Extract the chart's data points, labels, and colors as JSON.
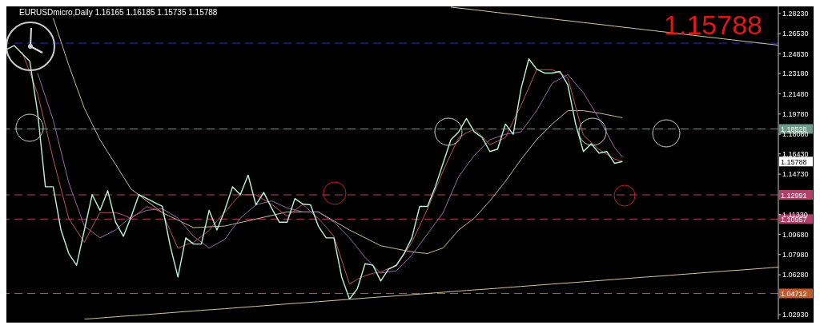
{
  "chart_data": {
    "type": "line",
    "title": "EURUSDmicro,Daily  1.16165 1.16185 1.15735 1.15788",
    "categories": [
      null,
      null,
      null,
      null,
      null,
      null,
      null,
      null,
      null,
      null,
      null,
      null,
      null,
      null,
      null,
      null,
      null,
      null,
      null,
      null,
      null,
      null,
      null,
      null,
      null,
      null,
      null,
      null,
      null,
      null,
      null,
      null,
      null,
      null,
      null,
      null,
      null,
      null,
      null,
      null,
      null,
      null,
      null,
      null,
      null,
      null,
      null,
      null,
      null,
      null,
      null,
      null,
      null,
      null,
      null,
      null,
      null,
      null,
      null,
      null,
      null,
      null,
      null,
      null,
      null,
      null,
      null,
      null,
      null,
      null,
      null,
      null,
      null,
      null,
      null,
      null,
      null,
      null,
      null,
      null,
      null,
      null,
      null,
      null,
      null,
      null,
      null,
      null,
      null,
      null,
      null,
      null,
      null,
      null,
      null,
      null,
      null,
      null,
      null,
      null
    ],
    "series": [
      {
        "color": "#cbbf98",
        "values": [
          null,
          null,
          null,
          null,
          null,
          null,
          1.2783,
          1.2586,
          1.2388,
          1.2207,
          1.2026,
          1.1894,
          1.1762,
          1.1658,
          1.1555,
          1.1451,
          1.1347,
          1.1298,
          1.1248,
          1.1199,
          1.1149,
          1.1118,
          1.1087,
          1.1055,
          1.1024,
          1.1027,
          1.1031,
          1.1034,
          1.1037,
          1.1052,
          1.1067,
          1.1081,
          1.1096,
          1.1111,
          1.1126,
          1.1141,
          1.1156,
          1.1156,
          1.1156,
          1.1156,
          1.1156,
          1.1118,
          1.108,
          1.1042,
          1.1004,
          1.0971,
          1.0938,
          1.0905,
          1.0872,
          1.0859,
          1.0846,
          1.0833,
          1.082,
          1.0813,
          1.0806,
          1.083,
          1.0853,
          1.0929,
          1.1004,
          1.1054,
          1.1103,
          1.1176,
          1.1248,
          1.1331,
          1.1413,
          1.1505,
          1.1597,
          1.168,
          1.1762,
          1.1828,
          1.1894,
          1.195,
          1.2006,
          1.2006,
          1.2006,
          1.1996,
          1.1986,
          1.1973,
          1.196,
          1.1947,
          null,
          null,
          null,
          null,
          null,
          null,
          null,
          null,
          null,
          null,
          null,
          null,
          null,
          null,
          null,
          null,
          null,
          null,
          null,
          null
        ]
      },
      {
        "color": "#9a6aa8",
        "values": [
          null,
          null,
          null,
          null,
          1.2322,
          1.2125,
          1.1927,
          1.1664,
          1.14,
          1.1219,
          1.1037,
          1.0988,
          1.0938,
          1.0971,
          1.1004,
          1.106,
          1.1116,
          1.1143,
          1.1169,
          1.1176,
          1.1182,
          1.1143,
          1.1103,
          1.1027,
          1.0951,
          1.0902,
          1.0853,
          1.0889,
          1.0925,
          1.1014,
          1.1103,
          1.1159,
          1.1215,
          1.1232,
          1.1248,
          1.1219,
          1.1189,
          1.1173,
          1.1156,
          1.1156,
          1.1156,
          1.1113,
          1.107,
          1.1004,
          1.0938,
          1.0856,
          1.0774,
          1.0708,
          1.0642,
          1.0652,
          1.0661,
          1.0727,
          1.0793,
          1.0882,
          1.0971,
          1.106,
          1.1149,
          1.1301,
          1.1452,
          1.1541,
          1.163,
          1.1696,
          1.1762,
          1.1785,
          1.1808,
          1.1818,
          1.1828,
          1.1917,
          1.2006,
          1.2121,
          1.2236,
          1.2273,
          1.2309,
          1.2233,
          1.2157,
          1.2049,
          1.194,
          1.1818,
          1.1696,
          1.1617,
          null,
          null,
          null,
          null,
          null,
          null,
          null,
          null,
          null,
          null,
          null,
          null,
          null,
          null,
          null,
          null,
          null,
          null,
          null,
          null
        ]
      },
      {
        "color": "#c0506a",
        "values": [
          null,
          null,
          1.25,
          1.233,
          1.215,
          1.188,
          1.16,
          1.135,
          1.11,
          1.1,
          1.09,
          1.103,
          1.115,
          1.115,
          1.115,
          1.113,
          1.11,
          1.115,
          1.12,
          1.118,
          1.115,
          1.1,
          1.085,
          1.088,
          1.09,
          1.095,
          1.1,
          1.108,
          1.115,
          1.123,
          1.13,
          1.13,
          1.13,
          1.126,
          1.122,
          1.117,
          1.112,
          1.117,
          1.122,
          1.116,
          1.11,
          1.103,
          1.095,
          1.075,
          1.055,
          1.059,
          1.062,
          1.064,
          1.065,
          1.068,
          1.07,
          1.08,
          1.09,
          1.104,
          1.118,
          1.134,
          1.15,
          1.164,
          1.178,
          1.182,
          1.185,
          1.179,
          1.172,
          1.175,
          1.178,
          1.192,
          1.205,
          1.22,
          1.235,
          1.235,
          1.235,
          1.232,
          1.228,
          1.204,
          1.18,
          1.174,
          1.168,
          1.164,
          1.16,
          1.158,
          null,
          null,
          null,
          null,
          null,
          null,
          null,
          null,
          null,
          null,
          null,
          null,
          null,
          null,
          null,
          null,
          null,
          null,
          null,
          null
        ]
      },
      {
        "color": "#b8f5dc",
        "values": [
          1.252,
          1.2553,
          1.2487,
          1.2421,
          1.1993,
          1.1367,
          1.1367,
          1.1004,
          1.0806,
          1.0708,
          1.1004,
          1.1301,
          1.1169,
          1.1334,
          1.107,
          1.0951,
          1.1116,
          1.1301,
          1.1268,
          1.1235,
          1.1202,
          1.0872,
          1.0609,
          1.0938,
          1.0886,
          1.0886,
          1.1169,
          1.1004,
          1.1169,
          1.1367,
          1.1301,
          1.1465,
          1.1215,
          1.132,
          1.1189,
          1.107,
          1.107,
          1.1268,
          1.1222,
          1.1215,
          1.1037,
          1.0938,
          1.0938,
          1.0609,
          1.0424,
          1.051,
          1.0721,
          1.0708,
          1.0576,
          1.0675,
          1.0708,
          1.0806,
          1.0938,
          1.1202,
          1.1202,
          1.1367,
          1.1564,
          1.1762,
          1.1828,
          1.194,
          1.1828,
          1.1782,
          1.1663,
          1.1683,
          1.1894,
          1.1808,
          1.219,
          1.2441,
          1.2355,
          1.2322,
          1.2322,
          1.2335,
          1.2223,
          1.1894,
          1.1663,
          1.1729,
          1.165,
          1.1663,
          1.1564,
          1.1579,
          null,
          null,
          null,
          null,
          null,
          null,
          null,
          null,
          null,
          null,
          null,
          null,
          null,
          null,
          null,
          null,
          null,
          null,
          null,
          null
        ]
      },
      {
        "color": "#d8c8a0",
        "values": [
          null,
          null,
          null,
          null,
          null,
          null,
          null,
          null,
          null,
          null,
          null,
          null,
          null,
          null,
          null,
          null,
          null,
          null,
          null,
          null,
          null,
          null,
          null,
          null,
          null,
          null,
          null,
          null,
          null,
          null,
          null,
          null,
          null,
          null,
          null,
          null,
          null,
          null,
          null,
          null,
          null,
          null,
          null,
          null,
          null,
          null,
          null,
          null,
          null,
          null,
          null,
          null,
          null,
          null,
          null,
          null,
          null,
          1.2876,
          1.2868,
          1.2861,
          1.2853,
          1.2846,
          1.2838,
          1.283,
          1.2823,
          1.2815,
          1.2807,
          1.28,
          1.2792,
          1.2784,
          1.2777,
          1.2769,
          1.2762,
          1.2754,
          1.2746,
          1.2739,
          1.2731,
          1.2724,
          1.2716,
          1.2708,
          1.2701,
          1.2693,
          1.2685,
          1.2678,
          1.267,
          1.2663,
          1.2655,
          1.2647,
          1.264,
          1.2632,
          1.2624,
          1.2617,
          1.2609,
          1.2602,
          1.2594,
          1.2586,
          1.2579,
          1.2571,
          1.2564,
          1.2556
        ]
      },
      {
        "color": "#d8c8a0",
        "values": [
          null,
          null,
          null,
          null,
          null,
          null,
          null,
          null,
          null,
          null,
          1.0255,
          1.026,
          1.0265,
          1.027,
          1.0275,
          1.028,
          1.0284,
          1.0289,
          1.0294,
          1.0299,
          1.0304,
          1.0309,
          1.0314,
          1.0319,
          1.0324,
          1.0329,
          1.0334,
          1.0338,
          1.0343,
          1.0348,
          1.0353,
          1.0358,
          1.0363,
          1.0368,
          1.0373,
          1.0378,
          1.0383,
          1.0388,
          1.0392,
          1.0397,
          1.0402,
          1.0407,
          1.0412,
          1.0417,
          1.0422,
          1.0427,
          1.0432,
          1.0437,
          1.0442,
          1.0446,
          1.0451,
          1.0456,
          1.0461,
          1.0466,
          1.0471,
          1.0476,
          1.0481,
          1.0486,
          1.0491,
          1.0496,
          1.0501,
          1.0505,
          1.051,
          1.0515,
          1.052,
          1.0525,
          1.053,
          1.0535,
          1.054,
          1.0545,
          1.055,
          1.0555,
          1.0559,
          1.0564,
          1.0569,
          1.0574,
          1.0579,
          1.0584,
          1.0589,
          1.0594,
          1.0599,
          1.0604,
          1.0609,
          1.0613,
          1.0618,
          1.0623,
          1.0628,
          1.0633,
          1.0638,
          1.0643,
          1.0648,
          1.0653,
          1.0658,
          1.0663,
          1.0667,
          1.0672,
          1.0677,
          1.0682,
          1.0687,
          1.0692
        ]
      }
    ],
    "ylim": [
      1.0253,
      1.2882
    ],
    "yticks": [
      {
        "value": 1.2823,
        "label": "1.28230"
      },
      {
        "value": 1.2653,
        "label": "1.26530"
      },
      {
        "value": 1.2483,
        "label": "1.24830"
      },
      {
        "value": 1.2318,
        "label": "1.23180"
      },
      {
        "value": 1.2148,
        "label": "1.21480"
      },
      {
        "value": 1.1978,
        "label": "1.19780"
      },
      {
        "value": 1.1808,
        "label": "1.18080"
      },
      {
        "value": 1.1643,
        "label": "1.16430"
      },
      {
        "value": 1.1473,
        "label": "1.14730"
      },
      {
        "value": 1.1133,
        "label": "1.11330"
      },
      {
        "value": 1.0968,
        "label": "1.09680"
      },
      {
        "value": 1.0798,
        "label": "1.07980"
      },
      {
        "value": 1.0628,
        "label": "1.06280"
      },
      {
        "value": 1.0293,
        "label": "1.02930"
      }
    ],
    "ref_lines": [
      {
        "axis": "y",
        "value": 1.2573,
        "color": "#2030c0",
        "line_style": "dashed"
      },
      {
        "axis": "y",
        "value": 1.18528,
        "label": "1.18528",
        "color": "#6f9a8a",
        "line_style": "dashed"
      },
      {
        "axis": "y",
        "value": 1.12991,
        "label": "1.12991",
        "color": "#b0406a",
        "line_style": "dashed"
      },
      {
        "axis": "y",
        "value": 1.10957,
        "label": "1.10957",
        "color": "#b0406a",
        "line_style": "dashed"
      },
      {
        "axis": "y",
        "value": 1.04712,
        "label": "1.04712",
        "color": "#c05a30",
        "line_style": "dashed"
      }
    ],
    "annotations": [
      "1.15788",
      "1.15788"
    ],
    "tick_labels": "y",
    "marker": "none",
    "line_style": "solid",
    "legend": false
  }
}
